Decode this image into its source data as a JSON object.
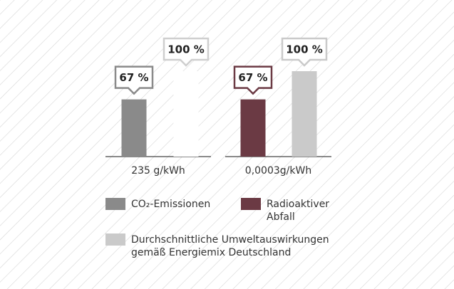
{
  "chart_data": {
    "type": "bar",
    "categories": [
      "235 g/kWh",
      "0,0003g/kWh"
    ],
    "ylim": [
      0,
      100
    ],
    "series": [
      {
        "name": "CO₂-Emissionen",
        "color": "#8a8a8a",
        "values": [
          67,
          null
        ],
        "value_labels": [
          "67 %",
          null
        ]
      },
      {
        "name": "Radioaktiver Abfall",
        "color": "#6b3a44",
        "values": [
          null,
          67
        ],
        "value_labels": [
          null,
          "67 %"
        ]
      },
      {
        "name": "Durchschnittliche Umweltauswirkungen gemäß Energiemix Deutschland",
        "color": "#cacaca",
        "colors": [
          "#ffffff",
          "#cacaca"
        ],
        "values": [
          100,
          100
        ],
        "value_labels": [
          "100 %",
          "100 %"
        ]
      }
    ]
  }
}
